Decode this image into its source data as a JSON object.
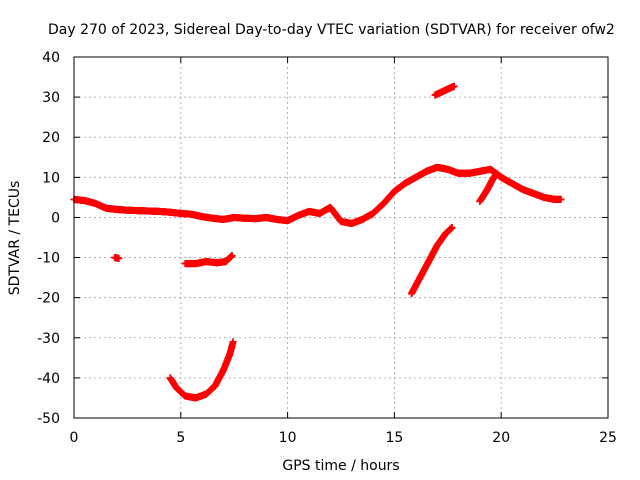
{
  "chart_data": {
    "type": "scatter",
    "title": "Day 270 of 2023, Sidereal Day-to-day VTEC variation (SDTVAR) for receiver ofw2",
    "xlabel": "GPS time / hours",
    "ylabel": "SDTVAR / TECUs",
    "xlim": [
      0,
      25
    ],
    "ylim": [
      -50,
      40
    ],
    "xticks": [
      0,
      5,
      10,
      15,
      20,
      25
    ],
    "yticks": [
      -50,
      -40,
      -30,
      -20,
      -10,
      0,
      10,
      20,
      30,
      40
    ],
    "xtick_labels": [
      "0",
      "5",
      "10",
      "15",
      "20",
      "25"
    ],
    "ytick_labels": [
      "-50",
      "-40",
      "-30",
      "-20",
      "-10",
      "0",
      "10",
      "20",
      "30",
      "40"
    ],
    "grid": true,
    "marker": "+",
    "color": "#ff0000",
    "series": [
      {
        "name": "main-track",
        "segments": [
          [
            [
              0.0,
              4.5
            ],
            [
              0.5,
              4.2
            ],
            [
              1.0,
              3.5
            ],
            [
              1.5,
              2.3
            ],
            [
              2.0,
              2.0
            ],
            [
              2.5,
              1.8
            ],
            [
              3.0,
              1.7
            ],
            [
              3.5,
              1.6
            ],
            [
              4.0,
              1.5
            ],
            [
              4.5,
              1.3
            ],
            [
              5.0,
              1.0
            ],
            [
              5.5,
              0.8
            ],
            [
              6.0,
              0.2
            ],
            [
              6.5,
              -0.2
            ],
            [
              7.0,
              -0.5
            ],
            [
              7.5,
              0.0
            ],
            [
              8.0,
              -0.2
            ],
            [
              8.5,
              -0.3
            ],
            [
              9.0,
              0.0
            ],
            [
              9.5,
              -0.5
            ],
            [
              10.0,
              -0.8
            ],
            [
              10.5,
              0.5
            ],
            [
              11.0,
              1.5
            ],
            [
              11.5,
              1.0
            ],
            [
              12.0,
              2.5
            ],
            [
              12.5,
              -1.0
            ],
            [
              13.0,
              -1.5
            ],
            [
              13.5,
              -0.5
            ],
            [
              14.0,
              1.0
            ],
            [
              14.5,
              3.5
            ],
            [
              15.0,
              6.5
            ],
            [
              15.5,
              8.5
            ],
            [
              16.0,
              10.0
            ],
            [
              16.5,
              11.5
            ],
            [
              17.0,
              12.5
            ],
            [
              17.5,
              12.0
            ],
            [
              18.0,
              11.0
            ],
            [
              18.5,
              11.0
            ],
            [
              19.0,
              11.5
            ],
            [
              19.5,
              12.0
            ],
            [
              20.0,
              10.0
            ],
            [
              20.5,
              8.5
            ],
            [
              21.0,
              7.0
            ],
            [
              21.5,
              6.0
            ],
            [
              22.0,
              5.0
            ],
            [
              22.5,
              4.5
            ],
            [
              22.8,
              4.5
            ]
          ]
        ]
      },
      {
        "name": "short-arcs",
        "segments": [
          [
            [
              1.9,
              -10.0
            ],
            [
              2.1,
              -10.2
            ]
          ],
          [
            [
              5.2,
              -11.5
            ],
            [
              5.7,
              -11.5
            ],
            [
              6.2,
              -11.0
            ],
            [
              6.7,
              -11.3
            ],
            [
              7.1,
              -11.0
            ],
            [
              7.4,
              -9.5
            ]
          ],
          [
            [
              4.5,
              -40.0
            ],
            [
              4.8,
              -42.5
            ],
            [
              5.2,
              -44.5
            ],
            [
              5.7,
              -45.0
            ],
            [
              6.2,
              -44.0
            ],
            [
              6.6,
              -42.0
            ],
            [
              7.0,
              -38.0
            ],
            [
              7.3,
              -34.0
            ],
            [
              7.45,
              -31.0
            ]
          ],
          [
            [
              15.8,
              -19.0
            ],
            [
              16.2,
              -15.0
            ],
            [
              16.6,
              -11.0
            ],
            [
              17.0,
              -7.0
            ],
            [
              17.4,
              -4.0
            ],
            [
              17.7,
              -2.5
            ]
          ],
          [
            [
              16.9,
              30.5
            ],
            [
              17.3,
              31.5
            ],
            [
              17.7,
              32.5
            ],
            [
              17.8,
              32.7
            ]
          ],
          [
            [
              19.0,
              4.0
            ],
            [
              19.3,
              6.5
            ],
            [
              19.6,
              9.5
            ],
            [
              19.8,
              11.0
            ]
          ]
        ]
      }
    ]
  }
}
